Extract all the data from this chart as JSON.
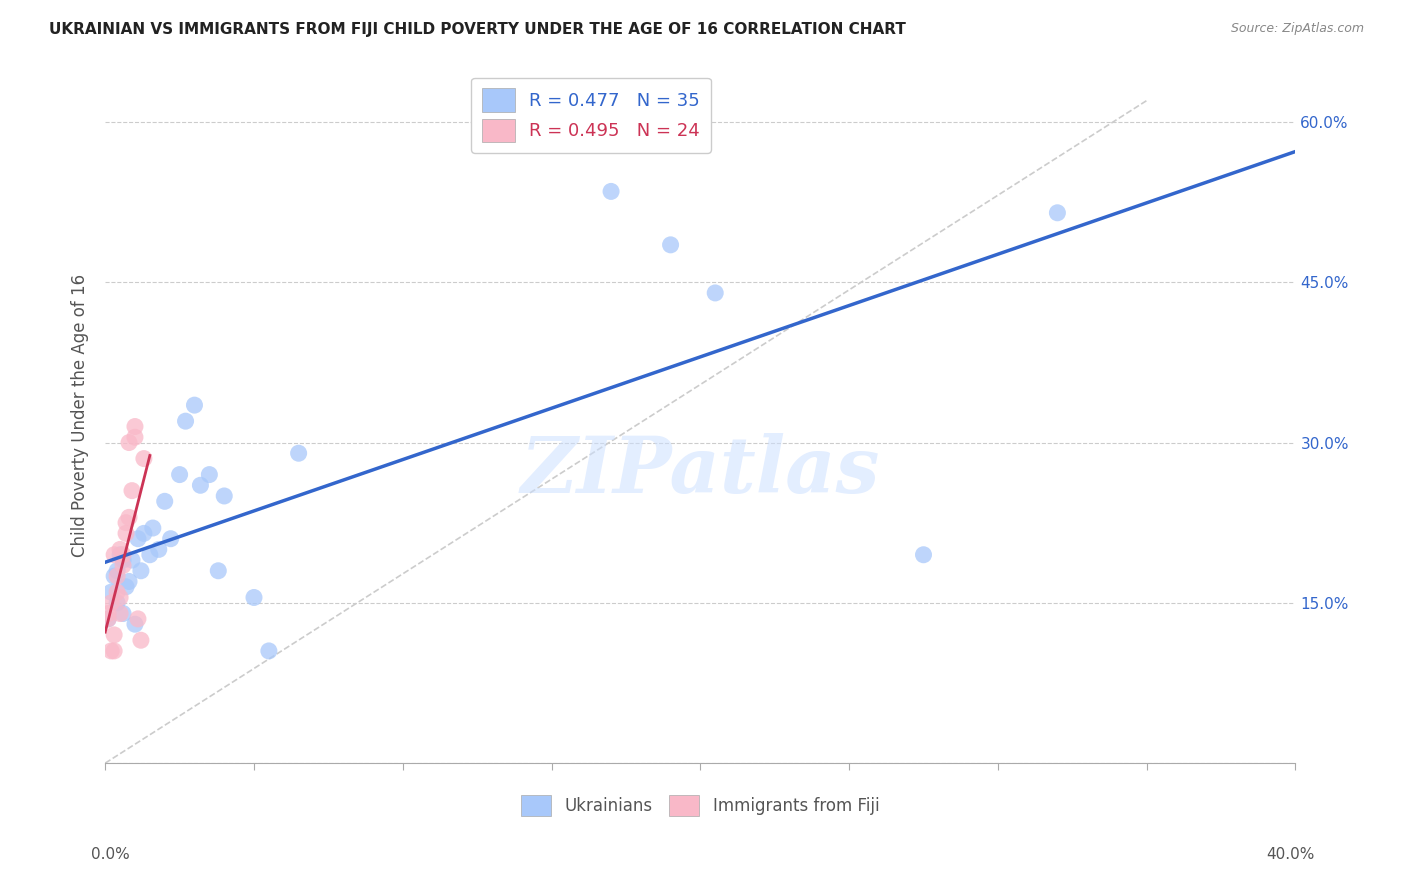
{
  "title": "UKRAINIAN VS IMMIGRANTS FROM FIJI CHILD POVERTY UNDER THE AGE OF 16 CORRELATION CHART",
  "source": "Source: ZipAtlas.com",
  "ylabel": "Child Poverty Under the Age of 16",
  "xlim": [
    0.0,
    0.4
  ],
  "ylim": [
    0.0,
    0.65
  ],
  "xticks": [
    0.0,
    0.05,
    0.1,
    0.15,
    0.2,
    0.25,
    0.3,
    0.35,
    0.4
  ],
  "yticks": [
    0.0,
    0.15,
    0.3,
    0.45,
    0.6
  ],
  "right_ytick_labels": [
    "60.0%",
    "45.0%",
    "30.0%",
    "15.0%"
  ],
  "ukrainian_color": "#a8c8fa",
  "fiji_color": "#f9b8c8",
  "ukrainian_line_color": "#3366cc",
  "fiji_line_color": "#cc3355",
  "diagonal_color": "#cccccc",
  "ukrainian_R": 0.477,
  "ukrainian_N": 35,
  "fiji_R": 0.495,
  "fiji_N": 24,
  "watermark": "ZIPatlas",
  "legend_label_ukrainian": "Ukrainians",
  "legend_label_fiji": "Immigrants from Fiji",
  "ukrainian_x": [
    0.001,
    0.002,
    0.003,
    0.004,
    0.004,
    0.005,
    0.006,
    0.006,
    0.007,
    0.008,
    0.009,
    0.01,
    0.011,
    0.012,
    0.013,
    0.015,
    0.016,
    0.018,
    0.02,
    0.022,
    0.025,
    0.027,
    0.03,
    0.032,
    0.035,
    0.038,
    0.04,
    0.05,
    0.055,
    0.065,
    0.17,
    0.19,
    0.205,
    0.275,
    0.32
  ],
  "ukrainian_y": [
    0.135,
    0.16,
    0.175,
    0.15,
    0.18,
    0.195,
    0.19,
    0.14,
    0.165,
    0.17,
    0.19,
    0.13,
    0.21,
    0.18,
    0.215,
    0.195,
    0.22,
    0.2,
    0.245,
    0.21,
    0.27,
    0.32,
    0.335,
    0.26,
    0.27,
    0.18,
    0.25,
    0.155,
    0.105,
    0.29,
    0.535,
    0.485,
    0.44,
    0.195,
    0.515
  ],
  "fiji_x": [
    0.001,
    0.001,
    0.002,
    0.002,
    0.003,
    0.003,
    0.003,
    0.004,
    0.004,
    0.005,
    0.005,
    0.005,
    0.006,
    0.006,
    0.007,
    0.007,
    0.008,
    0.008,
    0.009,
    0.01,
    0.01,
    0.011,
    0.012,
    0.013
  ],
  "fiji_y": [
    0.135,
    0.14,
    0.15,
    0.105,
    0.105,
    0.12,
    0.195,
    0.16,
    0.175,
    0.14,
    0.155,
    0.2,
    0.185,
    0.195,
    0.225,
    0.215,
    0.23,
    0.3,
    0.255,
    0.305,
    0.315,
    0.135,
    0.115,
    0.285
  ]
}
